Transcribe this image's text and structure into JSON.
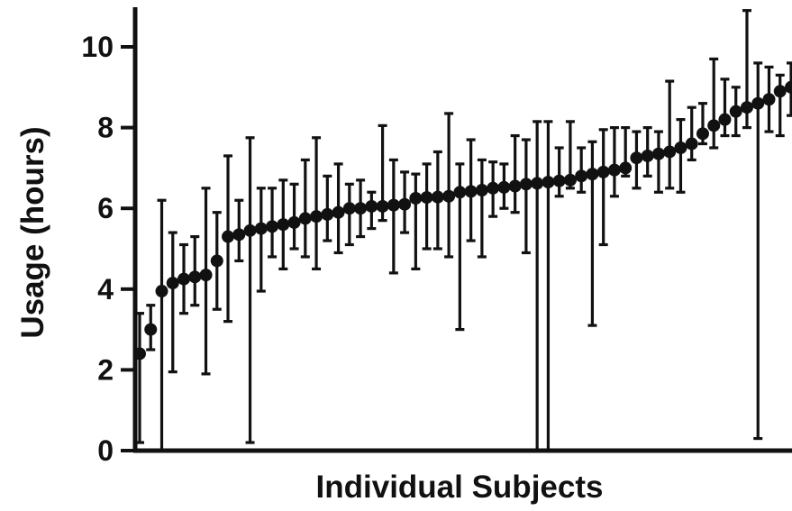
{
  "chart_data": {
    "type": "scatter",
    "title": "",
    "xlabel": "Individual Subjects",
    "ylabel": "Usage (hours)",
    "ylim": [
      0,
      11
    ],
    "yticks": [
      "0",
      "2",
      "4",
      "6",
      "8",
      "10"
    ],
    "grid": false,
    "legend": "none",
    "point_color": "#111111",
    "series": [
      {
        "y": [
          2.4,
          3.0,
          3.95,
          4.15,
          4.25,
          4.3,
          4.35,
          4.7,
          5.3,
          5.35,
          5.45,
          5.5,
          5.55,
          5.6,
          5.65,
          5.75,
          5.8,
          5.85,
          5.9,
          6.0,
          6.0,
          6.05,
          6.05,
          6.08,
          6.1,
          6.25,
          6.27,
          6.28,
          6.3,
          6.4,
          6.42,
          6.45,
          6.5,
          6.52,
          6.55,
          6.6,
          6.62,
          6.65,
          6.68,
          6.7,
          6.8,
          6.85,
          6.9,
          6.95,
          7.0,
          7.25,
          7.3,
          7.35,
          7.4,
          7.5,
          7.6,
          7.85,
          8.05,
          8.2,
          8.4,
          8.5,
          8.6,
          8.7,
          8.9,
          9.0
        ],
        "lo": [
          0.2,
          2.5,
          0.0,
          1.95,
          3.4,
          3.6,
          1.9,
          3.5,
          3.2,
          4.7,
          0.2,
          3.95,
          4.8,
          4.5,
          5.0,
          4.8,
          4.5,
          5.2,
          4.9,
          5.1,
          5.3,
          5.5,
          5.7,
          4.4,
          5.4,
          4.5,
          5.0,
          5.0,
          4.8,
          3.0,
          5.2,
          4.8,
          5.8,
          6.0,
          5.9,
          4.9,
          0.0,
          0.0,
          6.3,
          6.5,
          6.4,
          3.1,
          5.1,
          6.3,
          6.8,
          6.5,
          6.8,
          6.4,
          6.5,
          6.4,
          7.2,
          7.6,
          7.5,
          7.8,
          7.8,
          8.0,
          0.3,
          7.9,
          7.8,
          8.3
        ],
        "hi": [
          3.4,
          3.6,
          6.2,
          5.4,
          5.1,
          5.3,
          6.5,
          5.9,
          7.3,
          6.2,
          7.75,
          6.5,
          6.5,
          6.7,
          6.6,
          7.2,
          7.75,
          6.8,
          7.1,
          6.6,
          6.7,
          6.4,
          8.05,
          7.2,
          6.9,
          6.85,
          7.1,
          7.4,
          8.35,
          7.1,
          7.7,
          7.2,
          7.15,
          7.1,
          7.8,
          7.7,
          8.15,
          8.15,
          7.5,
          8.15,
          7.5,
          7.65,
          7.95,
          8.0,
          8.0,
          7.9,
          8.0,
          7.9,
          9.15,
          8.2,
          8.5,
          8.6,
          9.7,
          9.2,
          9.0,
          10.9,
          9.6,
          9.5,
          9.3,
          9.6
        ]
      }
    ]
  }
}
